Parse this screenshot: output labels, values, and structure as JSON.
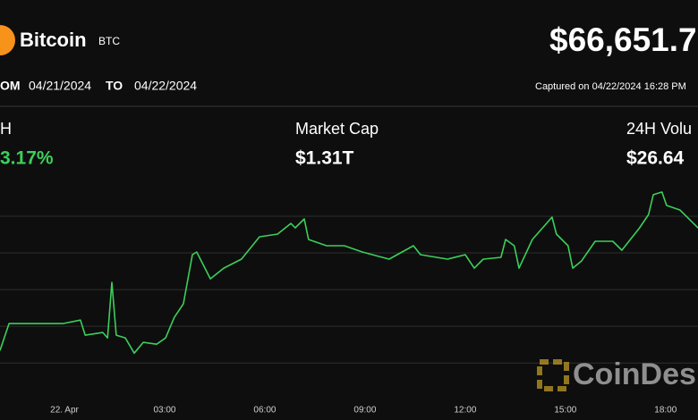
{
  "header": {
    "name": "Bitcoin",
    "symbol": "BTC",
    "price": "$66,651.7",
    "from_label": "OM",
    "from_date": "04/21/2024",
    "to_label": "TO",
    "to_date": "04/22/2024",
    "captured": "Captured on 04/22/2024 16:28 PM"
  },
  "stats": [
    {
      "label": "H",
      "value": "3.17%"
    },
    {
      "label": "Market Cap",
      "value": "$1.31T"
    },
    {
      "label": "24H Volu",
      "value": "$26.64"
    }
  ],
  "watermark": "CoinDes",
  "chart_data": {
    "type": "line",
    "color": "#3ccf5a",
    "grid": true,
    "x": [
      -1.93,
      -1.66,
      -0.86,
      -0.05,
      0.48,
      0.62,
      1.15,
      1.29,
      1.42,
      1.55,
      1.82,
      2.09,
      2.36,
      2.76,
      3.03,
      3.29,
      3.56,
      3.83,
      3.96,
      4.37,
      4.77,
      5.3,
      5.84,
      6.38,
      6.78,
      6.91,
      7.18,
      7.31,
      7.85,
      8.38,
      8.92,
      9.72,
      10.45,
      10.66,
      11.47,
      12.0,
      12.27,
      12.54,
      13.07,
      13.21,
      13.47,
      13.61,
      14.01,
      14.6,
      14.73,
      15.08,
      15.22,
      15.48,
      15.89,
      16.42,
      16.69,
      17.22,
      17.49,
      17.63,
      17.89,
      18.03,
      18.43,
      18.97
    ],
    "values": [
      64405,
      64844,
      64844,
      64844,
      64902,
      64654,
      64698,
      64610,
      65517,
      64654,
      64610,
      64361,
      64537,
      64507,
      64610,
      64946,
      65166,
      65971,
      66015,
      65576,
      65751,
      65898,
      66263,
      66307,
      66483,
      66410,
      66556,
      66220,
      66117,
      66117,
      66015,
      65898,
      66117,
      65971,
      65898,
      65971,
      65751,
      65898,
      65927,
      66220,
      66117,
      65751,
      66220,
      66585,
      66307,
      66117,
      65751,
      65868,
      66190,
      66190,
      66044,
      66410,
      66629,
      66951,
      66995,
      66776,
      66702,
      66410
    ],
    "xlim": [
      -1.93,
      18.97
    ],
    "ylim": [
      63560,
      67140
    ],
    "xticks": [
      {
        "value": 0,
        "label": "22. Apr"
      },
      {
        "value": 3,
        "label": "03:00"
      },
      {
        "value": 6,
        "label": "06:00"
      },
      {
        "value": 9,
        "label": "09:00"
      },
      {
        "value": 12,
        "label": "12:00"
      },
      {
        "value": 15,
        "label": "15:00"
      },
      {
        "value": 18,
        "label": "18:00"
      }
    ],
    "yticks": [
      64200,
      64800,
      65400,
      66000,
      66600
    ]
  }
}
